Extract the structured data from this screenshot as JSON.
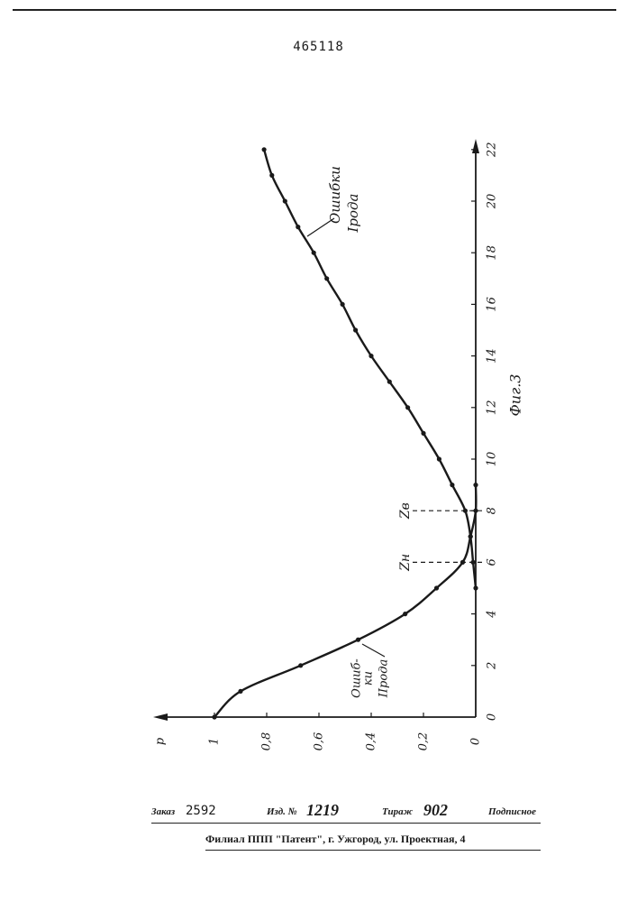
{
  "document": {
    "patent_number": "465118"
  },
  "figure": {
    "caption": "Фиг.3",
    "y_axis_label": "p",
    "x_ticks": [
      "0",
      "2",
      "4",
      "6",
      "8",
      "10",
      "12",
      "14",
      "16",
      "18",
      "20",
      "22"
    ],
    "y_ticks": [
      "1",
      "0,8",
      "0,6",
      "0,4",
      "0,2",
      "0"
    ],
    "markers": [
      {
        "label": "Zв",
        "x": 8
      },
      {
        "label": "Zн",
        "x": 6
      }
    ],
    "curve_labels": {
      "type1": [
        "Ошибки",
        "Iрода"
      ],
      "type2": [
        "Ошиб-",
        "ки",
        "IIрода"
      ]
    }
  },
  "chart_data": {
    "type": "line",
    "ylabel": "p",
    "xlim": [
      0,
      23
    ],
    "ylim": [
      0,
      1.05
    ],
    "series": [
      {
        "label": "Ошибки IIрода",
        "points": [
          [
            0,
            1.0
          ],
          [
            1,
            0.9
          ],
          [
            2,
            0.67
          ],
          [
            3,
            0.45
          ],
          [
            4,
            0.27
          ],
          [
            5,
            0.15
          ],
          [
            6,
            0.05
          ],
          [
            7,
            0.02
          ],
          [
            8,
            0.0
          ],
          [
            9,
            0.0
          ]
        ]
      },
      {
        "label": "Ошибки Iрода",
        "points": [
          [
            5,
            0.0
          ],
          [
            6,
            0.01
          ],
          [
            7,
            0.02
          ],
          [
            8,
            0.04
          ],
          [
            9,
            0.09
          ],
          [
            10,
            0.14
          ],
          [
            11,
            0.2
          ],
          [
            12,
            0.26
          ],
          [
            13,
            0.33
          ],
          [
            14,
            0.4
          ],
          [
            15,
            0.46
          ],
          [
            16,
            0.51
          ],
          [
            17,
            0.57
          ],
          [
            18,
            0.62
          ],
          [
            19,
            0.68
          ],
          [
            20,
            0.73
          ],
          [
            21,
            0.78
          ],
          [
            22,
            0.81
          ]
        ]
      }
    ]
  },
  "footer": {
    "order_label": "Заказ",
    "order_value": "2592",
    "edition_label": "Изд. №",
    "edition_value": "1219",
    "print_run_label": "Тираж",
    "print_run_value": "902",
    "subscription_label": "Подписное",
    "address": "Филиал ППП \"Патент\", г. Ужгород, ул. Проектная, 4"
  },
  "colors": {
    "ink": "#1a1a1a",
    "paper": "#ffffff"
  }
}
